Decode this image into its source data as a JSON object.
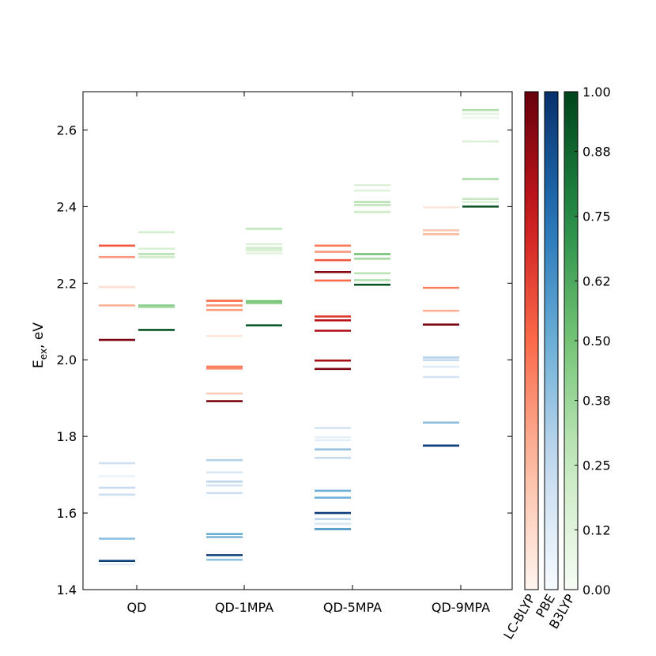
{
  "chart_data": {
    "type": "energy-level",
    "ylabel": "E",
    "ylabel_sub": "ex",
    "ylabel_unit": ", eV",
    "ylim": [
      1.4,
      2.7
    ],
    "yticks": [
      "1.4",
      "1.6",
      "1.8",
      "2.0",
      "2.2",
      "2.4",
      "2.6"
    ],
    "categories": [
      "QD",
      "QD-1MPA",
      "QD-5MPA",
      "QD-9MPA"
    ],
    "series": [
      {
        "name": "LC-BLYP",
        "colormap": "Reds",
        "levels": [
          [
            [
              2.298,
              0.55
            ],
            [
              2.268,
              0.35
            ],
            [
              2.19,
              0.1
            ],
            [
              2.142,
              0.28
            ],
            [
              2.052,
              0.95
            ]
          ],
          [
            [
              2.154,
              0.5
            ],
            [
              2.142,
              0.38
            ],
            [
              2.13,
              0.35
            ],
            [
              2.062,
              0.06
            ],
            [
              1.982,
              0.45
            ],
            [
              1.977,
              0.4
            ],
            [
              1.912,
              0.18
            ],
            [
              1.892,
              0.95
            ]
          ],
          [
            [
              2.298,
              0.45
            ],
            [
              2.282,
              0.35
            ],
            [
              2.26,
              0.55
            ],
            [
              2.229,
              0.92
            ],
            [
              2.207,
              0.5
            ],
            [
              2.113,
              0.65
            ],
            [
              2.103,
              0.8
            ],
            [
              2.076,
              0.82
            ],
            [
              1.998,
              0.85
            ],
            [
              1.976,
              0.95
            ]
          ],
          [
            [
              2.398,
              0.06
            ],
            [
              2.338,
              0.2
            ],
            [
              2.328,
              0.25
            ],
            [
              2.188,
              0.45
            ],
            [
              2.128,
              0.28
            ],
            [
              2.092,
              0.95
            ]
          ]
        ]
      },
      {
        "name": "PBE",
        "colormap": "Blues",
        "levels": [
          [
            [
              1.73,
              0.2
            ],
            [
              1.696,
              0.06
            ],
            [
              1.666,
              0.25
            ],
            [
              1.648,
              0.22
            ],
            [
              1.533,
              0.4
            ],
            [
              1.475,
              0.95
            ],
            [
              1.466,
              0.1
            ]
          ],
          [
            [
              1.738,
              0.3
            ],
            [
              1.706,
              0.15
            ],
            [
              1.682,
              0.28
            ],
            [
              1.672,
              0.18
            ],
            [
              1.652,
              0.22
            ],
            [
              1.545,
              0.5
            ],
            [
              1.537,
              0.45
            ],
            [
              1.49,
              0.95
            ],
            [
              1.478,
              0.4
            ]
          ],
          [
            [
              1.822,
              0.2
            ],
            [
              1.798,
              0.08
            ],
            [
              1.79,
              0.1
            ],
            [
              1.766,
              0.4
            ],
            [
              1.744,
              0.25
            ],
            [
              1.658,
              0.5
            ],
            [
              1.64,
              0.48
            ],
            [
              1.6,
              0.95
            ],
            [
              1.584,
              0.28
            ],
            [
              1.572,
              0.15
            ],
            [
              1.558,
              0.6
            ]
          ],
          [
            [
              2.006,
              0.3
            ],
            [
              1.999,
              0.25
            ],
            [
              1.982,
              0.12
            ],
            [
              1.955,
              0.18
            ],
            [
              1.836,
              0.4
            ],
            [
              1.776,
              0.95
            ]
          ]
        ]
      },
      {
        "name": "B3LYP",
        "colormap": "Greens",
        "levels": [
          [
            [
              2.333,
              0.2
            ],
            [
              2.29,
              0.15
            ],
            [
              2.276,
              0.3
            ],
            [
              2.268,
              0.2
            ],
            [
              2.142,
              0.42
            ],
            [
              2.138,
              0.38
            ],
            [
              2.078,
              0.95
            ]
          ],
          [
            [
              2.342,
              0.28
            ],
            [
              2.302,
              0.15
            ],
            [
              2.292,
              0.22
            ],
            [
              2.286,
              0.2
            ],
            [
              2.278,
              0.12
            ],
            [
              2.153,
              0.5
            ],
            [
              2.148,
              0.45
            ],
            [
              2.09,
              0.95
            ]
          ],
          [
            [
              2.456,
              0.15
            ],
            [
              2.442,
              0.12
            ],
            [
              2.412,
              0.3
            ],
            [
              2.404,
              0.28
            ],
            [
              2.386,
              0.22
            ],
            [
              2.276,
              0.5
            ],
            [
              2.264,
              0.35
            ],
            [
              2.226,
              0.28
            ],
            [
              2.208,
              0.32
            ],
            [
              2.196,
              0.95
            ]
          ],
          [
            [
              2.652,
              0.32
            ],
            [
              2.642,
              0.1
            ],
            [
              2.632,
              0.06
            ],
            [
              2.57,
              0.15
            ],
            [
              2.472,
              0.35
            ],
            [
              2.42,
              0.25
            ],
            [
              2.412,
              0.15
            ],
            [
              2.4,
              0.95
            ]
          ]
        ]
      }
    ],
    "colorbar": {
      "labels": [
        "LC-BLYP",
        "PBE",
        "B3LYP"
      ],
      "range": [
        0,
        1
      ],
      "ticks": [
        "0.00",
        "0.12",
        "0.25",
        "0.38",
        "0.50",
        "0.62",
        "0.75",
        "0.88",
        "1.00"
      ]
    },
    "grid": false
  }
}
